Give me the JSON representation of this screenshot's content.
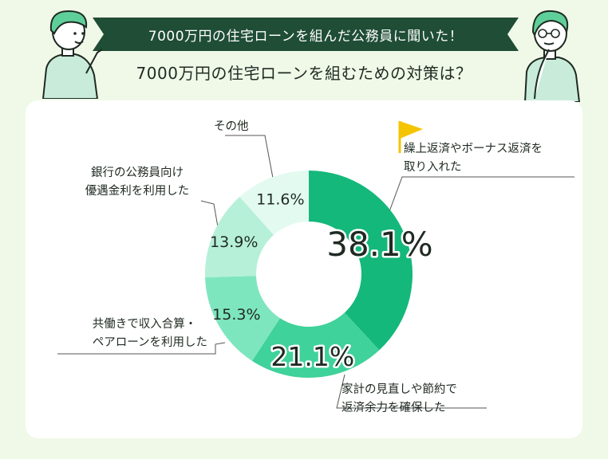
{
  "header": {
    "banner_text": "7000万円の住宅ローンを組んだ公務員に聞いた！",
    "subtitle": "7000万円の住宅ローンを組むための対策は？"
  },
  "chart_data": {
    "type": "donut",
    "title": "7000万円の住宅ローンを組むための対策は？",
    "slices": [
      {
        "label_lines": [
          "繰上返済やボーナス返済を",
          "取り入れた"
        ],
        "value": 38.1,
        "display": "38.1%",
        "color": "#14b87a"
      },
      {
        "label_lines": [
          "家計の見直しや節約で",
          "返済余力を確保した"
        ],
        "value": 21.1,
        "display": "21.1%",
        "color": "#3fd29a"
      },
      {
        "label_lines": [
          "共働きで収入合算・",
          "ペアローンを利用した"
        ],
        "value": 15.3,
        "display": "15.3%",
        "color": "#7ee6bf"
      },
      {
        "label_lines": [
          "銀行の公務員向け",
          "優遇金利を利用した"
        ],
        "value": 13.9,
        "display": "13.9%",
        "color": "#b6f0d8"
      },
      {
        "label_lines": [
          "その他"
        ],
        "value": 11.6,
        "display": "11.6%",
        "color": "#e3faf0"
      }
    ]
  },
  "colors": {
    "background": "#f0f9e8",
    "banner": "#1f4d36",
    "character_shirt": "#c9ecda",
    "character_hair": "#5fcf9a"
  },
  "icons": [
    "flag-icon"
  ]
}
